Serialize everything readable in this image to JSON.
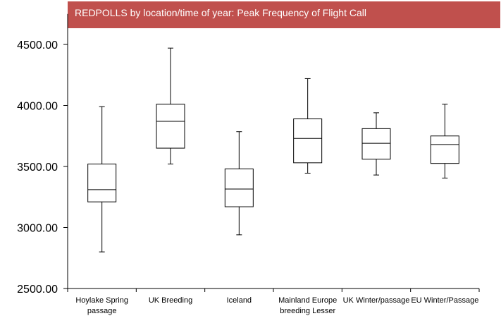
{
  "chart_data": {
    "type": "box",
    "title": "REDPOLLS by location/time of year: Peak Frequency of Flight Call",
    "title_color": "#c0504d",
    "ylim": [
      2500,
      4750
    ],
    "yticks": [
      "2500.00",
      "3000.00",
      "3500.00",
      "4000.00",
      "4500.00"
    ],
    "ytick_values": [
      2500,
      3000,
      3500,
      4000,
      4500
    ],
    "grid": false,
    "categories": [
      [
        "Hoylake Spring",
        "passage"
      ],
      [
        "UK Breeding"
      ],
      [
        "Iceland"
      ],
      [
        "Mainland Europe",
        "breeding Lesser"
      ],
      [
        "UK Winter/passage"
      ],
      [
        "EU Winter/Passage"
      ]
    ],
    "boxes": [
      {
        "min": 2800,
        "q1": 3210,
        "median": 3310,
        "q3": 3520,
        "max": 3990
      },
      {
        "min": 3520,
        "q1": 3650,
        "median": 3870,
        "q3": 4010,
        "max": 4470
      },
      {
        "min": 2940,
        "q1": 3170,
        "median": 3315,
        "q3": 3480,
        "max": 3785
      },
      {
        "min": 3445,
        "q1": 3530,
        "median": 3730,
        "q3": 3890,
        "max": 4220
      },
      {
        "min": 3430,
        "q1": 3560,
        "median": 3690,
        "q3": 3810,
        "max": 3940
      },
      {
        "min": 3405,
        "q1": 3525,
        "median": 3680,
        "q3": 3750,
        "max": 4010
      }
    ]
  }
}
